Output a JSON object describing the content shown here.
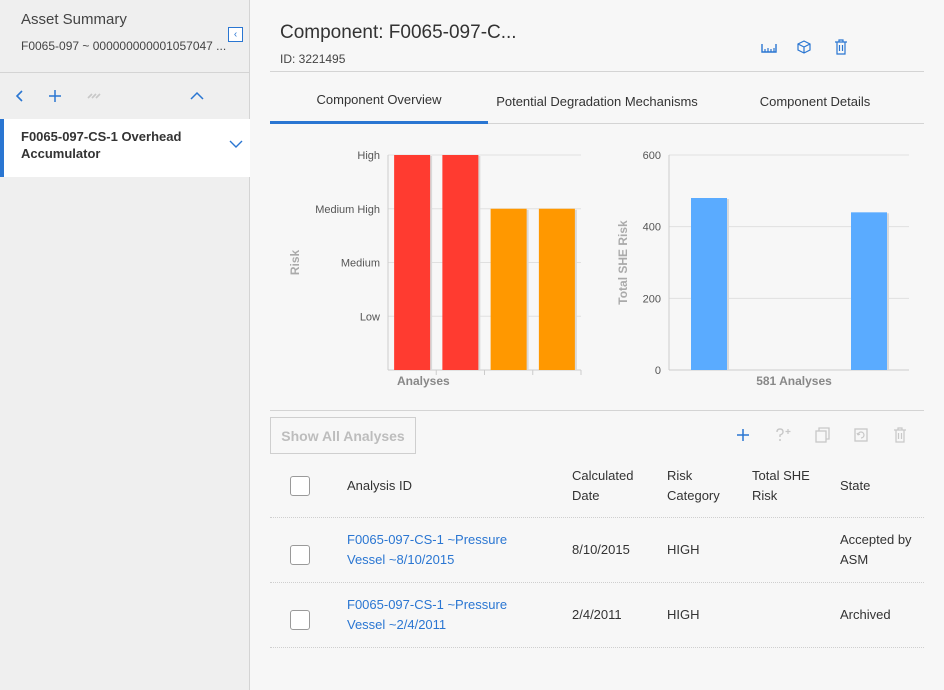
{
  "left": {
    "title": "Asset Summary",
    "subtitle": "F0065-097 ~ 000000000001057047 ...",
    "tree_item": "F0065-097-CS-1 Overhead Accumulator"
  },
  "header": {
    "title": "Component: F0065-097-C...",
    "id_label": "ID: 3221495"
  },
  "tabs": [
    {
      "label": "Component Overview",
      "active": true
    },
    {
      "label": "Potential Degradation Mechanisms",
      "active": false
    },
    {
      "label": "Component Details",
      "active": false
    }
  ],
  "chart_data": [
    {
      "type": "bar",
      "ylabel": "Risk",
      "xlabel": "Analyses",
      "y_ticks": [
        "Low",
        "Medium",
        "Medium High",
        "High"
      ],
      "values": [
        4,
        4,
        3,
        3
      ],
      "value_labels": [
        "High",
        "High",
        "Medium High",
        "Medium High"
      ],
      "colors": [
        "#ff3b30",
        "#ff3b30",
        "#ff9800",
        "#ff9800"
      ],
      "ylim": [
        0,
        4
      ]
    },
    {
      "type": "bar",
      "ylabel": "Total SHE Risk",
      "xlabel": "581 Analyses",
      "y_ticks": [
        "0",
        "200",
        "400",
        "600"
      ],
      "values": [
        480,
        0,
        440
      ],
      "colors": [
        "#5aabff",
        "#5aabff",
        "#5aabff"
      ],
      "ylim": [
        0,
        600
      ]
    }
  ],
  "analyses": {
    "show_all_label": "Show All Analyses",
    "columns": [
      "Analysis ID",
      "Calculated Date",
      "Risk Category",
      "Total SHE Risk",
      "State"
    ],
    "rows": [
      {
        "id": "F0065-097-CS-1 ~Pressure Vessel ~8/10/2015",
        "date": "8/10/2015",
        "risk": "HIGH",
        "she": "",
        "state": "Accepted by ASM"
      },
      {
        "id": "F0065-097-CS-1 ~Pressure Vessel ~2/4/2011",
        "date": "2/4/2011",
        "risk": "HIGH",
        "she": "",
        "state": "Archived"
      }
    ]
  },
  "colors": {
    "accent": "#2a76d2",
    "high": "#ff3b30",
    "medium_high": "#ff9800",
    "she_bar": "#5aabff"
  }
}
